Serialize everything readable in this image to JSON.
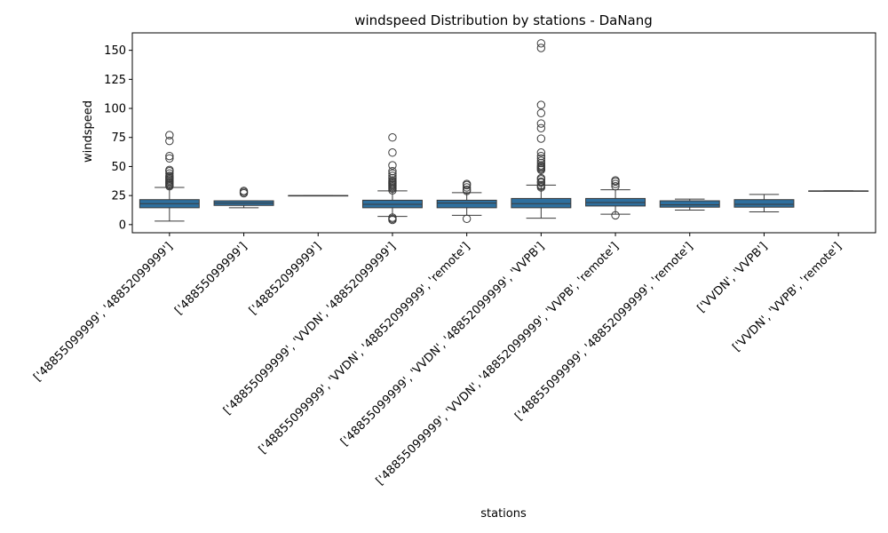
{
  "chart_data": {
    "type": "boxplot",
    "title": "windspeed Distribution by stations - DaNang",
    "xlabel": "stations",
    "ylabel": "windspeed",
    "ylim": [
      -7,
      165
    ],
    "yticks": [
      0,
      25,
      50,
      75,
      100,
      125,
      150
    ],
    "grid": false,
    "box_color": "#2e6f9e",
    "line_color": "#3a3a3a",
    "categories": [
      "['48855099999', '48852099999']",
      "['48855099999']",
      "['48852099999']",
      "['48855099999', 'VVDN', '48852099999']",
      "['48855099999', 'VVDN', '48852099999', 'remote']",
      "['48855099999', 'VVDN', '48852099999', 'VVPB']",
      "['48855099999', 'VVDN', '48852099999', 'VVPB', 'remote']",
      "['48855099999', '48852099999', 'remote']",
      "['VVDN', 'VVPB']",
      "['VVDN', 'VVPB', 'remote']"
    ],
    "boxes": [
      {
        "whisker_low": 3,
        "q1": 14.5,
        "median": 18,
        "q3": 21.5,
        "whisker_high": 32,
        "outliers": [
          33,
          34,
          35,
          36,
          37,
          38,
          39,
          40,
          41,
          42,
          44,
          46,
          47,
          57,
          59,
          72,
          77
        ]
      },
      {
        "whisker_low": 14.5,
        "q1": 16.5,
        "median": 18.5,
        "q3": 20.5,
        "whisker_high": 20.5,
        "outliers": [
          27,
          28,
          29
        ]
      },
      {
        "whisker_low": 25,
        "q1": 25,
        "median": 25,
        "q3": 25,
        "whisker_high": 25,
        "outliers": []
      },
      {
        "whisker_low": 7,
        "q1": 14.5,
        "median": 17.5,
        "q3": 21,
        "whisker_high": 29,
        "outliers": [
          4,
          5,
          6,
          29.5,
          31,
          32,
          33,
          34,
          35,
          36,
          37,
          38,
          40,
          42,
          44,
          46,
          51,
          62,
          75
        ]
      },
      {
        "whisker_low": 8,
        "q1": 14.5,
        "median": 18.5,
        "q3": 21,
        "whisker_high": 27.5,
        "outliers": [
          5,
          29,
          30,
          32,
          34,
          35
        ]
      },
      {
        "whisker_low": 5.5,
        "q1": 14.5,
        "median": 18,
        "q3": 22.5,
        "whisker_high": 34,
        "outliers": [
          32,
          33,
          34,
          36,
          37,
          39,
          40,
          47,
          48,
          49,
          50,
          51,
          53,
          55,
          57,
          59,
          62,
          74,
          83,
          87,
          96,
          103,
          152,
          156
        ]
      },
      {
        "whisker_low": 9,
        "q1": 16,
        "median": 19,
        "q3": 22.5,
        "whisker_high": 30,
        "outliers": [
          8,
          33,
          35,
          37,
          38
        ]
      },
      {
        "whisker_low": 12.5,
        "q1": 15,
        "median": 17,
        "q3": 20.5,
        "whisker_high": 22,
        "outliers": []
      },
      {
        "whisker_low": 11,
        "q1": 15,
        "median": 17.5,
        "q3": 21.5,
        "whisker_high": 26,
        "outliers": []
      },
      {
        "whisker_low": 29,
        "q1": 29,
        "median": 29,
        "q3": 29,
        "whisker_high": 29,
        "outliers": []
      }
    ]
  }
}
